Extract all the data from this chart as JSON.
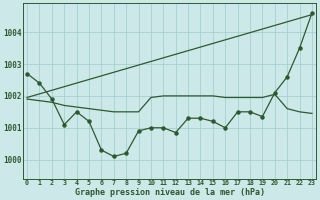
{
  "xlabel": "Graphe pression niveau de la mer (hPa)",
  "bg_color": "#cce8e8",
  "line_color": "#2d5a2d",
  "grid_color": "#9ecece",
  "ylim": [
    999.4,
    1004.9
  ],
  "xlim": [
    -0.3,
    23.3
  ],
  "yticks": [
    1000,
    1001,
    1002,
    1003,
    1004
  ],
  "xtick_labels": [
    "0",
    "1",
    "2",
    "3",
    "4",
    "5",
    "6",
    "7",
    "8",
    "9",
    "10",
    "11",
    "12",
    "13",
    "14",
    "15",
    "16",
    "17",
    "18",
    "19",
    "20",
    "21",
    "22",
    "23"
  ],
  "series_measured": [
    1002.7,
    1002.4,
    1001.9,
    1001.1,
    1001.5,
    1001.2,
    1000.3,
    1000.1,
    1000.2,
    1000.9,
    1001.0,
    1001.0,
    1000.85,
    1001.3,
    1001.3,
    1001.2,
    1001.0,
    1001.5,
    1001.5,
    1001.35,
    1002.1,
    1002.6,
    1003.5,
    1004.6
  ],
  "series_trend": [
    1001.95,
    1004.55
  ],
  "series_trend_x": [
    0,
    23
  ],
  "series_flat": [
    1001.9,
    1001.85,
    1001.8,
    1001.7,
    1001.65,
    1001.6,
    1001.55,
    1001.5,
    1001.5,
    1001.5,
    1001.95,
    1002.0,
    1002.0,
    1002.0,
    1002.0,
    1002.0,
    1001.95,
    1001.95,
    1001.95,
    1001.95,
    1002.05,
    1001.6,
    1001.5,
    1001.45
  ]
}
